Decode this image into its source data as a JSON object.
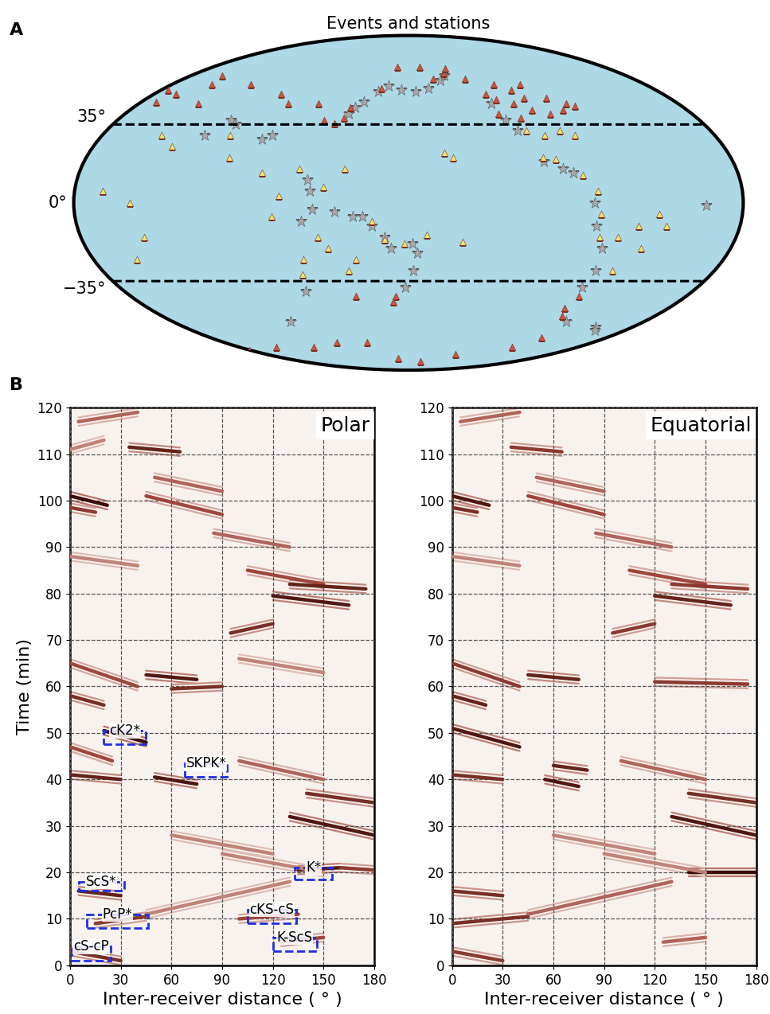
{
  "chart_data": [
    {
      "type": "map",
      "title": "Events and stations",
      "panel_label": "A",
      "tick_labels": "y",
      "yticks": [
        {
          "value": 35,
          "label": "35°"
        },
        {
          "value": 0,
          "label": "0°"
        },
        {
          "value": -35,
          "label": "−35°"
        }
      ],
      "dashed_latitudes": [
        35,
        -35
      ],
      "series": [
        {
          "color": "#a8a8a8",
          "marker": "star",
          "lon": [
            142,
            145,
            150,
            158,
            165,
            175,
            -175,
            -165,
            -155,
            -150,
            125,
            127,
            122,
            128,
            140,
            150,
            155,
            160,
            167,
            170,
            -178,
            -175,
            -177,
            178,
            100,
            95,
            75,
            70,
            60,
            -105,
            -95,
            -90,
            -80,
            -78,
            -72,
            -70,
            -72,
            -60,
            -30,
            -25,
            -20,
            -125,
            -120,
            -115,
            115,
            90
          ],
          "lat": [
            40,
            43,
            46,
            51,
            54,
            52,
            51,
            53,
            57,
            60,
            10,
            5,
            -8,
            -3,
            -4,
            -6,
            -6,
            -10,
            -15,
            -20,
            -18,
            -22,
            -30,
            -38,
            30,
            28,
            35,
            37,
            30,
            18,
            15,
            13,
            0,
            -10,
            -20,
            -30,
            -38,
            -55,
            -58,
            -60,
            -1,
            45,
            37,
            32,
            -40,
            -55
          ]
        },
        {
          "color": "#c8553d",
          "marker": "triangle",
          "lon": [
            -150,
            -147,
            -160,
            -135,
            -125,
            -120,
            -110,
            -100,
            -90,
            -80,
            -75,
            -70,
            -105,
            -95,
            -115,
            -85,
            -123,
            -100,
            -110,
            10,
            15,
            25,
            5,
            30,
            40,
            60,
            90,
            100,
            120,
            128,
            135,
            140,
            142,
            160,
            170,
            -170,
            172,
            170,
            146,
            -70,
            -72,
            -68,
            0,
            40,
            80,
            110,
            140,
            165,
            -160,
            -120,
            -70,
            -60
          ],
          "lat": [
            61,
            64,
            58,
            58,
            50,
            47,
            45,
            42,
            40,
            42,
            45,
            44,
            52,
            55,
            55,
            48,
            40,
            48,
            38,
            46,
            50,
            60,
            52,
            55,
            45,
            55,
            50,
            45,
            45,
            37,
            35.5,
            38,
            43,
            53,
            65,
            65,
            -42,
            -45,
            -42,
            -42,
            -48,
            -52,
            -72,
            -70,
            -70,
            -67,
            -67,
            -78,
            -80,
            -75,
            -70,
            -64
          ]
        },
        {
          "color": "#f3e26b",
          "marker": "triangle",
          "lon": [
            -100,
            -90,
            -82,
            -110,
            -105,
            -98,
            -85,
            -78,
            -76,
            -75,
            -65,
            -55,
            -45,
            -50,
            -60,
            -40,
            -155,
            -160,
            -150,
            -170,
            178,
            167,
            160,
            145,
            134,
            120,
            106,
            110,
            100,
            80,
            75,
            35,
            45,
            30,
            25,
            35,
            15,
            120,
            135,
            145,
            150,
            117,
            130
          ],
          "lat": [
            30,
            32,
            30,
            32,
            20,
            19,
            12,
            5,
            -5,
            -15,
            -15,
            -10,
            -5,
            -20,
            -30,
            -10,
            20,
            22,
            -17,
            -14,
            -18,
            -16,
            -8,
            15,
            7,
            15,
            -6,
            3,
            13,
            20,
            30,
            30,
            25,
            0,
            -25,
            -15,
            5,
            -25,
            -20,
            -30,
            -25,
            -32,
            -15
          ]
        }
      ]
    },
    {
      "type": "wavefield",
      "title": "Polar",
      "panel_label": "B",
      "x_label": "Inter-receiver distance ( ° )",
      "y_label": "Time (min)",
      "xlim": [
        0,
        180
      ],
      "xticks": [
        0,
        30,
        60,
        90,
        120,
        150,
        180
      ],
      "ylim": [
        0,
        120
      ],
      "yticks": [
        0,
        10,
        20,
        30,
        40,
        50,
        60,
        70,
        80,
        90,
        100,
        110,
        120
      ],
      "grid": true,
      "segments": [
        [
          0,
          101,
          22,
          99,
          1.0
        ],
        [
          0,
          98.5,
          15,
          97.5,
          0.6
        ],
        [
          5,
          117,
          40,
          119,
          0.4
        ],
        [
          0,
          111,
          20,
          113,
          0.3
        ],
        [
          35,
          111.5,
          65,
          110.5,
          0.8
        ],
        [
          50,
          105,
          90,
          102,
          0.4
        ],
        [
          45,
          101,
          90,
          97,
          0.5
        ],
        [
          85,
          93,
          130,
          90,
          0.4
        ],
        [
          105,
          85,
          150,
          82,
          0.5
        ],
        [
          120,
          79.5,
          165,
          77.5,
          0.9
        ],
        [
          130,
          82,
          175,
          81,
          0.8
        ],
        [
          95,
          71.5,
          120,
          73.5,
          0.7
        ],
        [
          0,
          65,
          40,
          60,
          0.5
        ],
        [
          45,
          62.5,
          75,
          61.5,
          0.9
        ],
        [
          60,
          59.5,
          90,
          60,
          0.7
        ],
        [
          0,
          58,
          20,
          56,
          0.7
        ],
        [
          20,
          50.5,
          45,
          48,
          1.0
        ],
        [
          0,
          47,
          25,
          44,
          0.5
        ],
        [
          0,
          41,
          30,
          40,
          0.8
        ],
        [
          50,
          40.5,
          75,
          39,
          0.9
        ],
        [
          100,
          44,
          150,
          40,
          0.4
        ],
        [
          140,
          37,
          180,
          35,
          0.7
        ],
        [
          130,
          32,
          180,
          28,
          0.9
        ],
        [
          135,
          20.5,
          160,
          21,
          0.9
        ],
        [
          160,
          21,
          180,
          20.5,
          0.6
        ],
        [
          5,
          16,
          30,
          15,
          0.8
        ],
        [
          15,
          9,
          45,
          10.5,
          0.6
        ],
        [
          45,
          11,
          130,
          18,
          0.3
        ],
        [
          0,
          3,
          30,
          1,
          0.7
        ],
        [
          100,
          10,
          135,
          11,
          0.5
        ],
        [
          125,
          5,
          150,
          6,
          0.5
        ],
        [
          90,
          24,
          150,
          20,
          0.3
        ],
        [
          60,
          28,
          120,
          24,
          0.3
        ],
        [
          0,
          88,
          40,
          86,
          0.3
        ],
        [
          100,
          66,
          150,
          63,
          0.3
        ]
      ],
      "boxes": [
        {
          "label": "cK2*",
          "x": [
            20,
            45
          ],
          "t": [
            47.5,
            50.5
          ]
        },
        {
          "label": "SKPK*",
          "x": [
            68,
            93
          ],
          "t": [
            40.5,
            43.5
          ]
        },
        {
          "label": "ScS*",
          "x": [
            5,
            32
          ],
          "t": [
            16,
            18
          ]
        },
        {
          "label": "PcP*",
          "x": [
            10,
            46
          ],
          "t": [
            8,
            11
          ]
        },
        {
          "label": "cS-cP",
          "x": [
            1,
            24
          ],
          "t": [
            1,
            4
          ]
        },
        {
          "label": "cKS-cS",
          "x": [
            105,
            134
          ],
          "t": [
            9,
            12
          ]
        },
        {
          "label": "K-ScS",
          "x": [
            120,
            146
          ],
          "t": [
            3,
            6
          ]
        },
        {
          "label": "K*",
          "x": [
            133,
            155
          ],
          "t": [
            18.5,
            21
          ]
        }
      ]
    },
    {
      "type": "wavefield",
      "title": "Equatorial",
      "x_label": "Inter-receiver distance ( ° )",
      "xlim": [
        0,
        180
      ],
      "xticks": [
        0,
        30,
        60,
        90,
        120,
        150,
        180
      ],
      "ylim": [
        0,
        120
      ],
      "yticks": [
        0,
        10,
        20,
        30,
        40,
        50,
        60,
        70,
        80,
        90,
        100,
        110,
        120
      ],
      "grid": true,
      "segments": [
        [
          0,
          101,
          22,
          99,
          0.9
        ],
        [
          0,
          98.5,
          15,
          97.5,
          0.7
        ],
        [
          5,
          117,
          40,
          119,
          0.4
        ],
        [
          35,
          111.5,
          65,
          110.5,
          0.6
        ],
        [
          50,
          105,
          90,
          102,
          0.4
        ],
        [
          45,
          101,
          90,
          97,
          0.5
        ],
        [
          85,
          93,
          130,
          90,
          0.4
        ],
        [
          105,
          85,
          150,
          82,
          0.5
        ],
        [
          120,
          79.5,
          165,
          77.5,
          0.8
        ],
        [
          130,
          82,
          175,
          81,
          0.6
        ],
        [
          95,
          71.5,
          120,
          73.5,
          0.6
        ],
        [
          0,
          65,
          40,
          60,
          0.6
        ],
        [
          45,
          62.5,
          75,
          61.5,
          0.8
        ],
        [
          120,
          61,
          175,
          60.5,
          0.6
        ],
        [
          0,
          58,
          20,
          56,
          0.8
        ],
        [
          0,
          51,
          40,
          47,
          0.9
        ],
        [
          0,
          41,
          30,
          40,
          0.7
        ],
        [
          55,
          40,
          75,
          38.5,
          0.9
        ],
        [
          60,
          43,
          80,
          42,
          0.8
        ],
        [
          100,
          44,
          150,
          40,
          0.4
        ],
        [
          140,
          37,
          180,
          35,
          0.7
        ],
        [
          130,
          32,
          180,
          28,
          0.9
        ],
        [
          140,
          20,
          180,
          20,
          1.0
        ],
        [
          0,
          16,
          30,
          15,
          0.7
        ],
        [
          0,
          9,
          45,
          10.5,
          0.7
        ],
        [
          45,
          11,
          130,
          18,
          0.4
        ],
        [
          0,
          3,
          30,
          1,
          0.6
        ],
        [
          125,
          5,
          150,
          6,
          0.4
        ],
        [
          90,
          24,
          150,
          20,
          0.3
        ],
        [
          60,
          28,
          120,
          24,
          0.3
        ],
        [
          0,
          88,
          40,
          86,
          0.3
        ]
      ]
    }
  ]
}
